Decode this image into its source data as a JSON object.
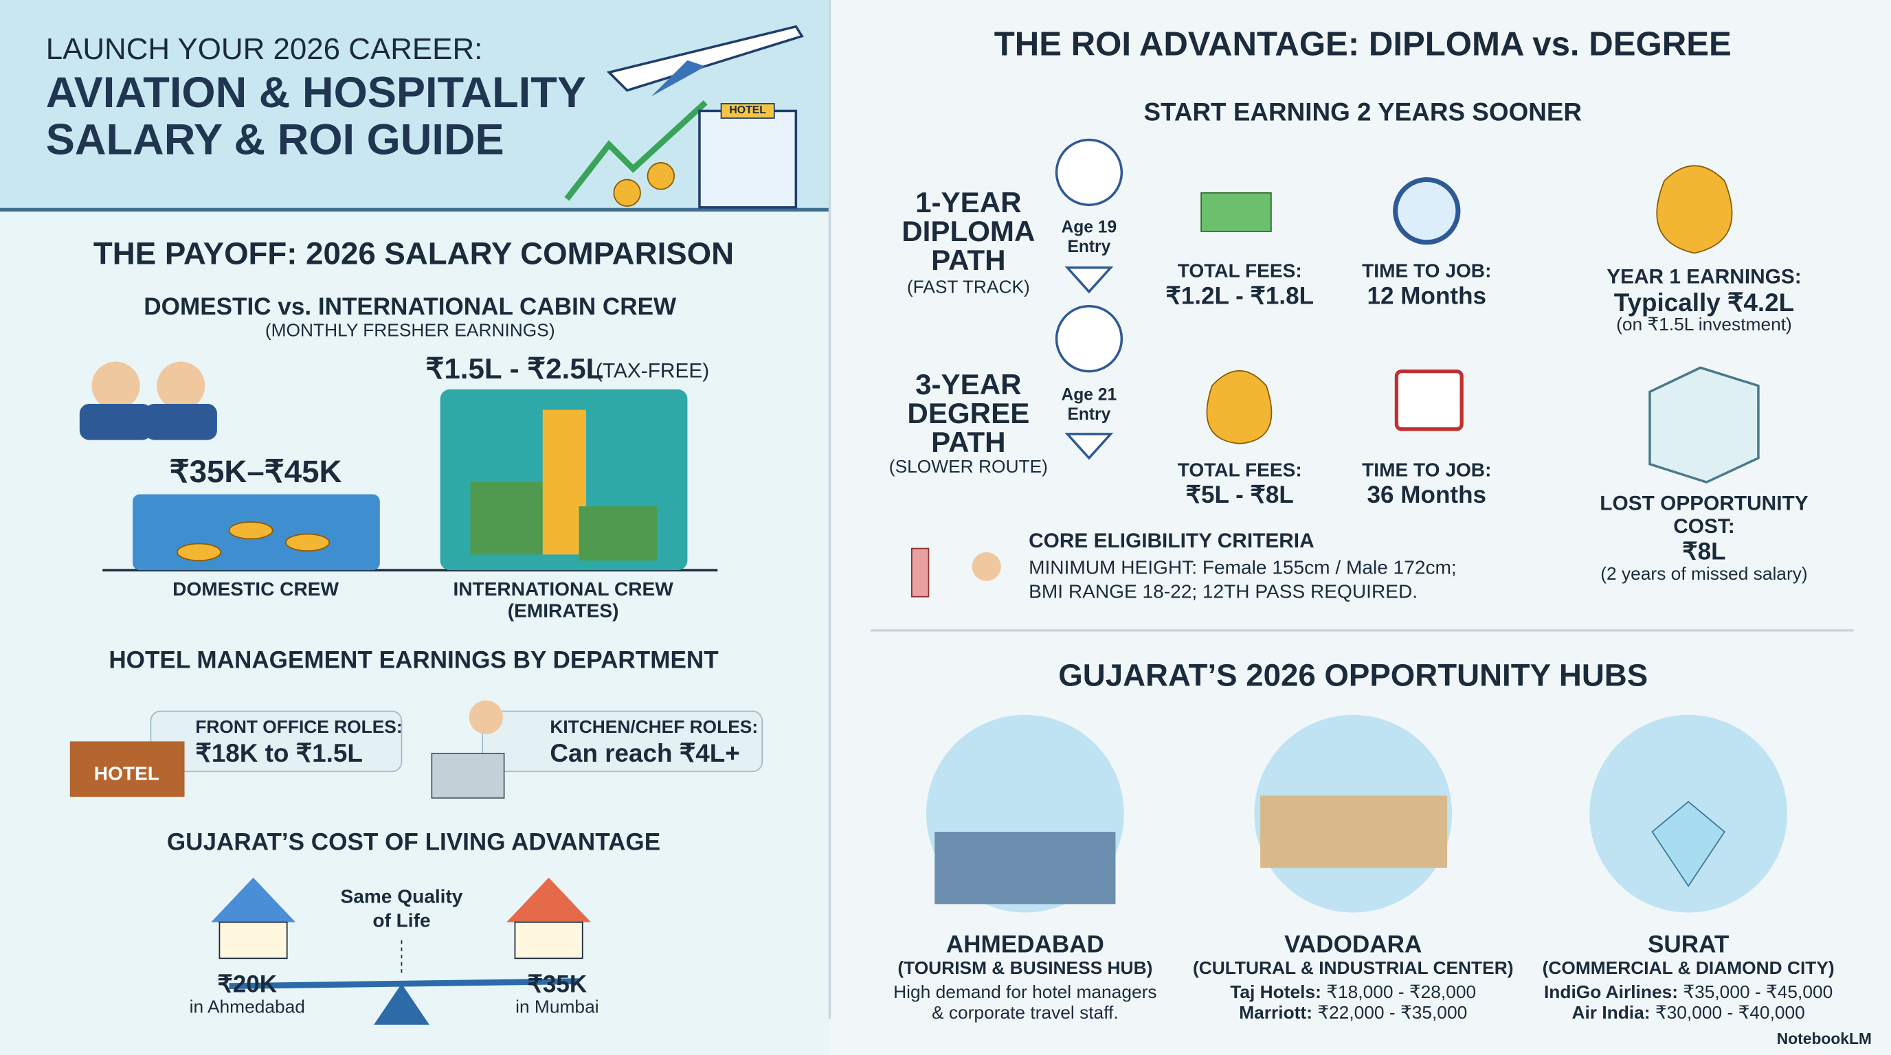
{
  "header": {
    "kicker": "LAUNCH YOUR 2026 CAREER:",
    "title_lines": [
      "AVIATION & HOSPITALITY",
      "SALARY & ROI GUIDE"
    ],
    "hotel_sign": "HOTEL"
  },
  "salary": {
    "title": "THE PAYOFF: 2026 SALARY COMPARISON",
    "subtitle": "DOMESTIC vs. INTERNATIONAL CABIN CREW",
    "note": "(MONTHLY FRESHER EARNINGS)",
    "domestic": {
      "value": "₹35K–₹45K",
      "label": "DOMESTIC CREW"
    },
    "international": {
      "value": "₹1.5L - ₹2.5L",
      "tag": "(TAX-FREE)",
      "label_lines": [
        "INTERNATIONAL CREW",
        "(EMIRATES)"
      ]
    }
  },
  "hotel": {
    "title": "HOTEL MANAGEMENT EARNINGS BY DEPARTMENT",
    "desk_sign": "HOTEL",
    "front": {
      "label": "FRONT OFFICE ROLES:",
      "value": "₹18K to ₹1.5L"
    },
    "kitchen": {
      "label": "KITCHEN/CHEF ROLES:",
      "value": "Can reach ₹4L+"
    }
  },
  "living": {
    "title": "GUJARAT’S COST OF LIVING ADVANTAGE",
    "center_lines": [
      "Same Quality",
      "of Life"
    ],
    "left": {
      "value": "₹20K",
      "place": "in Ahmedabad"
    },
    "right": {
      "value": "₹35K",
      "place": "in Mumbai"
    }
  },
  "roi": {
    "title": "THE ROI ADVANTAGE: DIPLOMA vs. DEGREE",
    "subtitle": "START EARNING 2 YEARS SOONER",
    "paths": [
      {
        "name_lines": [
          "1-YEAR",
          "DIPLOMA",
          "PATH"
        ],
        "note": "(FAST TRACK)",
        "pin_lines": [
          "Age 19",
          "Entry"
        ],
        "fees_label": "TOTAL FEES:",
        "fees": "₹1.2L - ₹1.8L",
        "time_label": "TIME TO JOB:",
        "time": "12 Months"
      },
      {
        "name_lines": [
          "3-YEAR",
          "DEGREE",
          "PATH"
        ],
        "note": "(SLOWER ROUTE)",
        "pin_lines": [
          "Age 21",
          "Entry"
        ],
        "fees_label": "TOTAL FEES:",
        "fees": "₹5L - ₹8L",
        "time_label": "TIME TO JOB:",
        "time": "36 Months"
      }
    ],
    "earnings": {
      "label": "YEAR 1 EARNINGS:",
      "value": "Typically ₹4.2L",
      "note": "(on ₹1.5L investment)"
    },
    "lost": {
      "label_lines": [
        "LOST OPPORTUNITY",
        "COST:"
      ],
      "value": "₹8L",
      "note": "(2 years of missed salary)"
    },
    "eligibility": {
      "title": "CORE ELIGIBILITY CRITERIA",
      "lines": [
        "MINIMUM HEIGHT: Female 155cm / Male 172cm;",
        "BMI RANGE 18-22; 12TH PASS REQUIRED."
      ]
    }
  },
  "hubs": {
    "title": "GUJARAT’S 2026 OPPORTUNITY HUBS",
    "cities": [
      {
        "name": "AHMEDABAD",
        "tag": "(TOURISM & BUSINESS HUB)",
        "lines": [
          "High demand for hotel managers",
          "& corporate travel staff."
        ]
      },
      {
        "name": "VADODARA",
        "tag": "(CULTURAL & INDUSTRIAL CENTER)",
        "rows": [
          {
            "label": "Taj Hotels:",
            "value": "₹18,000 - ₹28,000"
          },
          {
            "label": "Marriott:",
            "value": "₹22,000 - ₹35,000"
          }
        ]
      },
      {
        "name": "SURAT",
        "tag": "(COMMERCIAL & DIAMOND CITY)",
        "rows": [
          {
            "label": "IndiGo Airlines:",
            "value": "₹35,000 - ₹45,000"
          },
          {
            "label": "Air India:",
            "value": "₹30,000 - ₹40,000"
          }
        ]
      }
    ]
  },
  "footer": "NotebookLM"
}
